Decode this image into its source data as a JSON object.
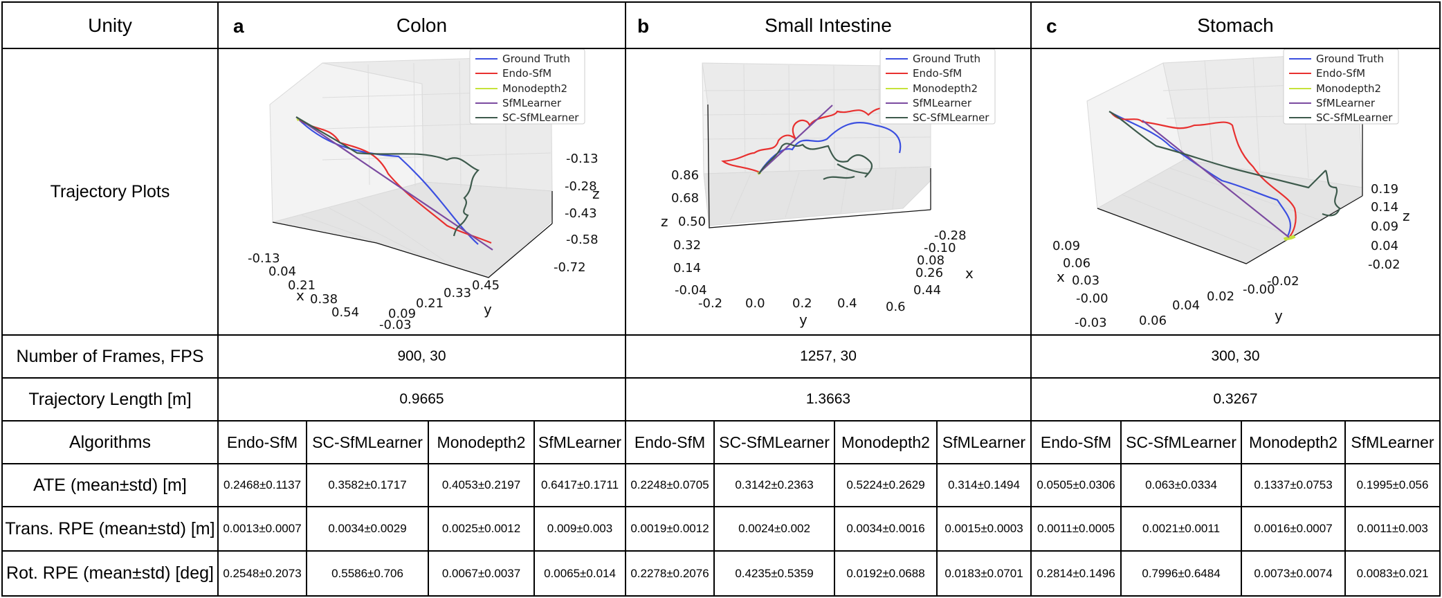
{
  "headers": {
    "corner": "Unity",
    "sections": [
      {
        "letter": "a",
        "title": "Colon"
      },
      {
        "letter": "b",
        "title": "Small Intestine"
      },
      {
        "letter": "c",
        "title": "Stomach"
      }
    ]
  },
  "rows": {
    "trajectory_plots": "Trajectory Plots",
    "frames_fps": "Number of Frames, FPS",
    "traj_length": "Trajectory Length [m]",
    "algorithms": "Algorithms",
    "ate": "ATE (mean±std) [m]",
    "trans_rpe": "Trans. RPE (mean±std) [m]",
    "rot_rpe": "Rot. RPE (mean±std) [deg]"
  },
  "frames_fps": [
    "900, 30",
    "1257, 30",
    "300, 30"
  ],
  "traj_length": [
    "0.9665",
    "1.3663",
    "0.3267"
  ],
  "algorithms": [
    "Endo-SfM",
    "SC-SfMLearner",
    "Monodepth2",
    "SfMLearner"
  ],
  "metrics": {
    "colon": {
      "ate": [
        "0.2468±0.1137",
        "0.3582±0.1717",
        "0.4053±0.2197",
        "0.6417±0.1711"
      ],
      "trans": [
        "0.0013±0.0007",
        "0.0034±0.0029",
        "0.0025±0.0012",
        "0.009±0.003"
      ],
      "rot": [
        "0.2548±0.2073",
        "0.5586±0.706",
        "0.0067±0.0037",
        "0.0065±0.014"
      ]
    },
    "small_intestine": {
      "ate": [
        "0.2248±0.0705",
        "0.3142±0.2363",
        "0.5224±0.2629",
        "0.314±0.1494"
      ],
      "trans": [
        "0.0019±0.0012",
        "0.0024±0.002",
        "0.0034±0.0016",
        "0.0015±0.0003"
      ],
      "rot": [
        "0.2278±0.2076",
        "0.4235±0.5359",
        "0.0192±0.0688",
        "0.0183±0.0701"
      ]
    },
    "stomach": {
      "ate": [
        "0.0505±0.0306",
        "0.063±0.0334",
        "0.1337±0.0753",
        "0.1995±0.056"
      ],
      "trans": [
        "0.0011±0.0005",
        "0.0021±0.0011",
        "0.0016±0.0007",
        "0.0011±0.003"
      ],
      "rot": [
        "0.2814±0.1496",
        "0.7996±0.6484",
        "0.0073±0.0074",
        "0.0083±0.021"
      ]
    }
  },
  "legend": [
    "Ground Truth",
    "Endo-SfM",
    "Monodepth2",
    "SfMLearner",
    "SC-SfMLearner"
  ],
  "colors": {
    "ground_truth": "#3b4fe0",
    "endo_sfm": "#e8302f",
    "monodepth2": "#c6e23a",
    "sfmlearner": "#7b4aa0",
    "sc_sfmlearner": "#3d5a4c"
  },
  "chart_data": [
    {
      "type": "line3d",
      "title": "Colon",
      "series": [
        "Ground Truth",
        "Endo-SfM",
        "Monodepth2",
        "SfMLearner",
        "SC-SfMLearner"
      ],
      "xlabel": "x",
      "ylabel": "y",
      "zlabel": "z",
      "x_ticks": [
        "-0.13",
        "0.04",
        "0.21",
        "0.38",
        "0.54"
      ],
      "y_ticks": [
        "-0.03",
        "0.09",
        "0.21",
        "0.33",
        "0.45"
      ],
      "z_ticks": [
        "-0.13",
        "-0.28",
        "-0.43",
        "-0.58",
        "-0.72"
      ]
    },
    {
      "type": "line3d",
      "title": "Small Intestine",
      "series": [
        "Ground Truth",
        "Endo-SfM",
        "Monodepth2",
        "SfMLearner",
        "SC-SfMLearner"
      ],
      "xlabel": "x",
      "ylabel": "y",
      "zlabel": "z",
      "x_ticks": [
        "-0.28",
        "-0.10",
        "0.08",
        "0.26",
        "0.44"
      ],
      "y_ticks": [
        "-0.2",
        "0.0",
        "0.2",
        "0.4",
        "0.6"
      ],
      "z_ticks": [
        "0.86",
        "0.68",
        "0.50",
        "0.32",
        "0.14",
        "-0.04"
      ]
    },
    {
      "type": "line3d",
      "title": "Stomach",
      "series": [
        "Ground Truth",
        "Endo-SfM",
        "Monodepth2",
        "SfMLearner",
        "SC-SfMLearner"
      ],
      "xlabel": "x",
      "ylabel": "y",
      "zlabel": "z",
      "x_ticks": [
        "0.09",
        "0.06",
        "0.03",
        "-0.00",
        "-0.03"
      ],
      "y_ticks": [
        "0.06",
        "0.04",
        "0.02",
        "-0.00",
        "-0.02"
      ],
      "z_ticks": [
        "0.19",
        "0.14",
        "0.09",
        "0.04",
        "-0.02"
      ]
    }
  ]
}
